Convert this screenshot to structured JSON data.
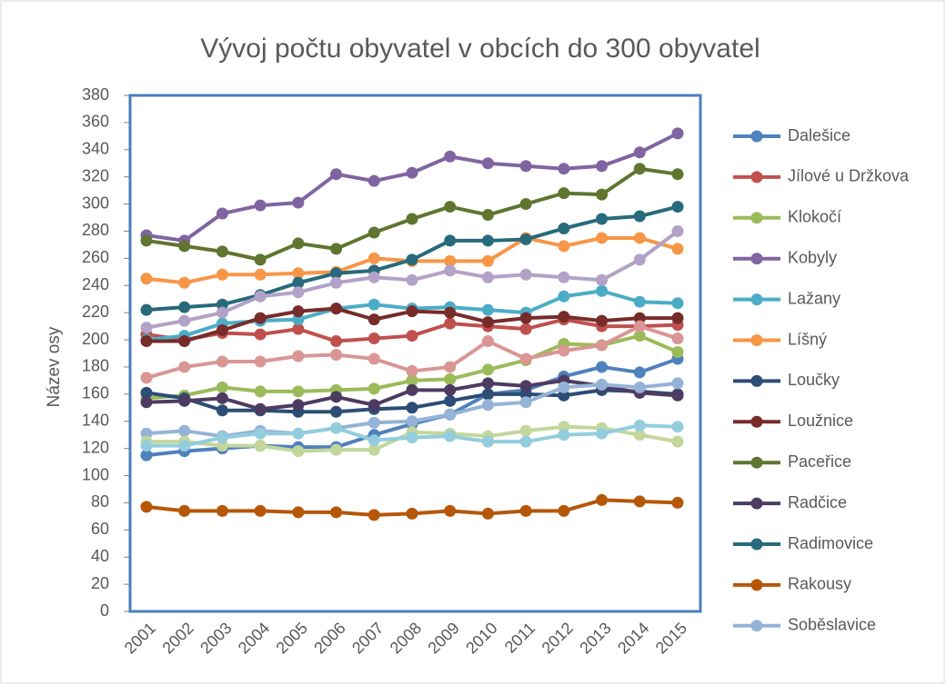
{
  "chart_data": {
    "type": "line",
    "title": "Vývoj počtu obyvatel v obcích do 300 obyvatel",
    "y_label": "Název osy",
    "categories": [
      "2001",
      "2002",
      "2003",
      "2004",
      "2005",
      "2006",
      "2007",
      "2008",
      "2009",
      "2010",
      "2011",
      "2012",
      "2013",
      "2014",
      "2015"
    ],
    "ylim": [
      0,
      380
    ],
    "yticks": [
      0,
      20,
      40,
      60,
      80,
      100,
      120,
      140,
      160,
      180,
      200,
      220,
      240,
      260,
      280,
      300,
      320,
      340,
      360,
      380
    ],
    "legend": "right",
    "series": [
      {
        "name": "Dalešice",
        "color": "#4f81bd",
        "values": [
          115,
          118,
          120,
          122,
          121,
          121,
          130,
          138,
          145,
          160,
          163,
          173,
          180,
          176,
          186
        ]
      },
      {
        "name": "Jílové u Držkova",
        "color": "#c0504d",
        "values": [
          204,
          200,
          205,
          204,
          208,
          199,
          201,
          203,
          212,
          210,
          208,
          215,
          210,
          210,
          211
        ]
      },
      {
        "name": "Klokočí",
        "color": "#9bbb59",
        "values": [
          157,
          159,
          165,
          162,
          162,
          163,
          164,
          170,
          171,
          178,
          185,
          197,
          196,
          203,
          191
        ]
      },
      {
        "name": "Kobyly",
        "color": "#8064a2",
        "values": [
          277,
          273,
          293,
          299,
          301,
          322,
          317,
          323,
          335,
          330,
          328,
          326,
          328,
          338,
          352
        ]
      },
      {
        "name": "Lažany",
        "color": "#4bacc6",
        "values": [
          200,
          203,
          212,
          214,
          215,
          223,
          226,
          223,
          224,
          222,
          220,
          232,
          236,
          228,
          227
        ]
      },
      {
        "name": "Líšný",
        "color": "#f79646",
        "values": [
          245,
          242,
          248,
          248,
          249,
          250,
          260,
          258,
          258,
          258,
          275,
          269,
          275,
          275,
          267
        ]
      },
      {
        "name": "Loučky",
        "color": "#2c4d75",
        "values": [
          161,
          157,
          148,
          148,
          147,
          147,
          149,
          150,
          155,
          160,
          160,
          159,
          163,
          162,
          160
        ]
      },
      {
        "name": "Loužnice",
        "color": "#772c2a",
        "values": [
          199,
          199,
          207,
          216,
          221,
          223,
          215,
          221,
          220,
          213,
          216,
          217,
          214,
          216,
          216
        ]
      },
      {
        "name": "Paceřice",
        "color": "#5f7530",
        "values": [
          273,
          269,
          265,
          259,
          271,
          267,
          279,
          289,
          298,
          292,
          300,
          308,
          307,
          326,
          322
        ]
      },
      {
        "name": "Radčice",
        "color": "#4d3b62",
        "values": [
          154,
          155,
          157,
          149,
          152,
          158,
          152,
          163,
          163,
          168,
          166,
          170,
          166,
          161,
          159
        ]
      },
      {
        "name": "Radimovice",
        "color": "#276a7c",
        "values": [
          222,
          224,
          226,
          233,
          242,
          249,
          251,
          259,
          273,
          273,
          274,
          282,
          289,
          291,
          298
        ]
      },
      {
        "name": "Rakousy",
        "color": "#b65708",
        "values": [
          77,
          74,
          74,
          74,
          73,
          73,
          71,
          72,
          74,
          72,
          74,
          74,
          82,
          81,
          80
        ]
      },
      {
        "name": "Soběslavice",
        "color": "#95b3d7",
        "values": [
          131,
          133,
          129,
          133,
          131,
          135,
          139,
          140,
          145,
          152,
          154,
          165,
          167,
          165,
          168
        ]
      },
      {
        "color": "#d99694",
        "values": [
          172,
          180,
          184,
          184,
          188,
          189,
          186,
          177,
          180,
          199,
          186,
          192,
          196,
          210,
          201
        ]
      },
      {
        "color": "#c3d69b",
        "values": [
          125,
          125,
          122,
          122,
          118,
          119,
          119,
          132,
          131,
          129,
          133,
          136,
          135,
          130,
          125
        ]
      },
      {
        "color": "#b3a2c7",
        "values": [
          209,
          214,
          220,
          232,
          235,
          242,
          246,
          244,
          251,
          246,
          248,
          246,
          244,
          259,
          280
        ]
      },
      {
        "color": "#93cddd",
        "values": [
          122,
          122,
          128,
          131,
          131,
          135,
          126,
          128,
          129,
          125,
          125,
          130,
          131,
          137,
          136
        ]
      }
    ]
  }
}
